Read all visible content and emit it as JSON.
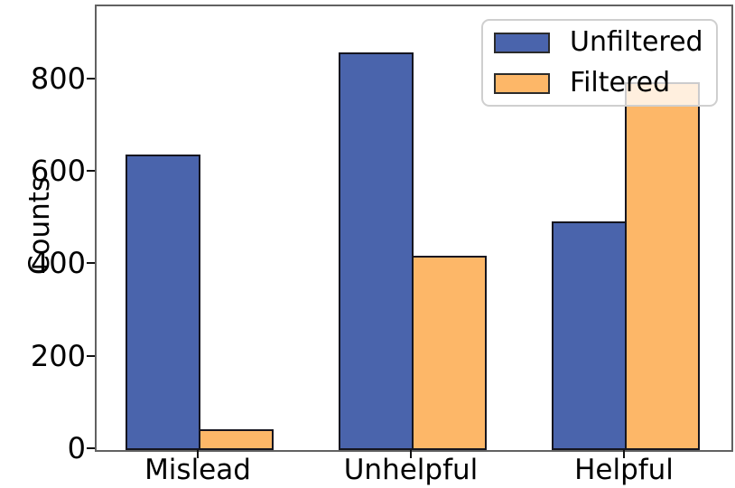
{
  "figure": {
    "background": "#ffffff"
  },
  "chart_data": {
    "type": "bar",
    "title": "",
    "xlabel": "",
    "ylabel": "Counts",
    "categories": [
      "Mislead",
      "Unhelpful",
      "Helpful"
    ],
    "series": [
      {
        "name": "Unfiltered",
        "color": "#4a64ac",
        "values": [
          640,
          860,
          495
        ]
      },
      {
        "name": "Filtered",
        "color": "#fdb768",
        "values": [
          45,
          420,
          795
        ]
      }
    ],
    "yticks": [
      0,
      200,
      400,
      600,
      800
    ],
    "ylim": [
      0,
      960
    ],
    "grid": false,
    "legend_position": "upper right",
    "bar_edge_color": "#15151f",
    "spine_color": "#616161"
  }
}
